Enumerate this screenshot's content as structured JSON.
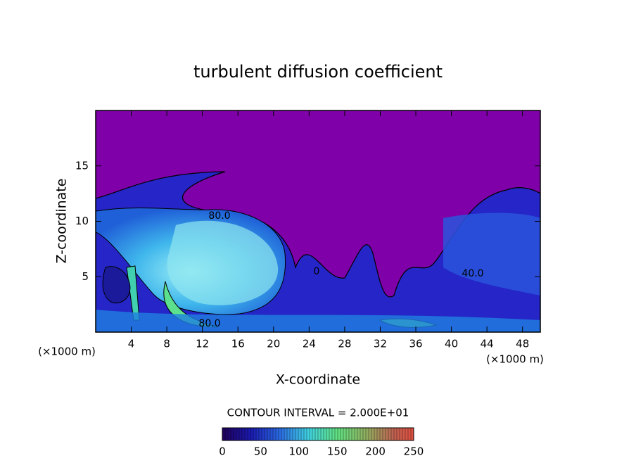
{
  "chart_data": {
    "type": "contour",
    "title": "turbulent diffusion coefficient",
    "x_label": "X-coordinate",
    "y_label": "Z-coordinate",
    "x_unit": "(×1000 m)",
    "y_unit": "(×1000 m)",
    "xlim": [
      0,
      50
    ],
    "ylim": [
      0,
      20
    ],
    "xticks": [
      4,
      8,
      12,
      16,
      20,
      24,
      28,
      32,
      36,
      40,
      44,
      48
    ],
    "yticks": [
      5,
      10,
      15
    ],
    "contour_interval_label": "CONTOUR INTERVAL = 2.000E+01",
    "colorbar_lim": [
      0,
      250
    ],
    "colorbar_ticks": [
      0,
      50,
      100,
      150,
      200,
      250
    ],
    "contour_labels": [
      "80.0",
      "80.0",
      "40.0",
      "0"
    ]
  }
}
